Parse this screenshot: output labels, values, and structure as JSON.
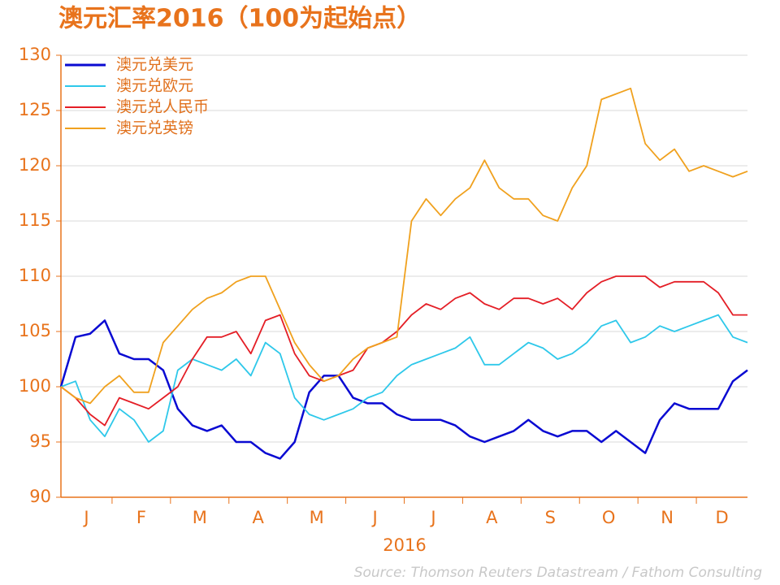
{
  "chart_data": {
    "type": "line",
    "title": "澳元汇率2016（100为起始点）",
    "xlabel": "2016",
    "source": "Source: Thomson Reuters Datastream / Fathom Consulting",
    "categories": [
      "J",
      null,
      null,
      null,
      "F",
      null,
      null,
      null,
      "M",
      null,
      null,
      null,
      "A",
      null,
      null,
      null,
      "M",
      null,
      null,
      null,
      "J",
      null,
      null,
      null,
      "J",
      null,
      null,
      null,
      "A",
      null,
      null,
      null,
      "S",
      null,
      null,
      null,
      "O",
      null,
      null,
      null,
      "N",
      null,
      null,
      null,
      "D",
      null,
      null,
      null
    ],
    "ylim": [
      90,
      130
    ],
    "yticks": [
      90,
      95,
      100,
      105,
      110,
      115,
      120,
      125,
      130
    ],
    "grid": true,
    "legend": "upper-left",
    "series": [
      {
        "name": "澳元兑美元",
        "color": "#0a0ad2",
        "values": [
          100,
          104.5,
          104.8,
          106,
          103,
          102.5,
          102.5,
          101.5,
          98,
          96.5,
          96,
          96.5,
          95,
          95,
          94,
          93.5,
          95,
          99.5,
          101,
          101,
          99,
          98.5,
          98.5,
          97.5,
          97,
          97,
          97,
          96.5,
          95.5,
          95,
          95.5,
          96,
          97,
          96,
          95.5,
          96,
          96,
          95,
          96,
          95,
          94,
          97,
          98.5,
          98,
          98,
          98,
          100.5,
          101.5
        ]
      },
      {
        "name": "澳元兑欧元",
        "color": "#2ec8ea",
        "values": [
          100,
          100.5,
          97,
          95.5,
          98,
          97,
          95,
          96,
          101.5,
          102.5,
          102,
          101.5,
          102.5,
          101,
          104,
          103,
          99,
          97.5,
          97,
          97.5,
          98,
          99,
          99.5,
          101,
          102,
          102.5,
          103,
          103.5,
          104.5,
          102,
          102,
          103,
          104,
          103.5,
          102.5,
          103,
          104,
          105.5,
          106,
          104,
          104.5,
          105.5,
          105,
          105.5,
          106,
          106.5,
          104.5,
          104
        ]
      },
      {
        "name": "澳元兑人民币",
        "color": "#e41e26",
        "values": [
          100,
          99,
          97.5,
          96.5,
          99,
          98.5,
          98,
          99,
          100,
          102.5,
          104.5,
          104.5,
          105,
          103,
          106,
          106.5,
          103,
          101,
          100.5,
          101,
          101.5,
          103.5,
          104,
          105,
          106.5,
          107.5,
          107,
          108,
          108.5,
          107.5,
          107,
          108,
          108,
          107.5,
          108,
          107,
          108.5,
          109.5,
          110,
          110,
          110,
          109,
          109.5,
          109.5,
          109.5,
          108.5,
          106.5,
          106.5
        ]
      },
      {
        "name": "澳元兑英镑",
        "color": "#f0a11e",
        "values": [
          100,
          99,
          98.5,
          100,
          101,
          99.5,
          99.5,
          104,
          105.5,
          107,
          108,
          108.5,
          109.5,
          110,
          110,
          107,
          104,
          102,
          100.5,
          101,
          102.5,
          103.5,
          104,
          104.5,
          115,
          117,
          115.5,
          117,
          118,
          120.5,
          118,
          117,
          117,
          115.5,
          115,
          118,
          120,
          126,
          126.5,
          127,
          122,
          120.5,
          121.5,
          119.5,
          120,
          119.5,
          119,
          119.5
        ]
      }
    ]
  }
}
